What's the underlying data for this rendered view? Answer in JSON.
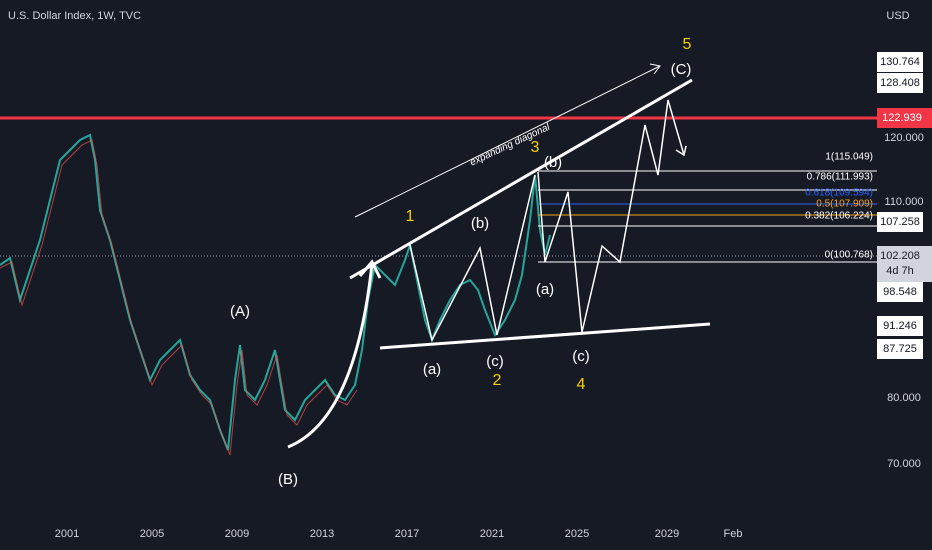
{
  "header": {
    "title": "U.S. Dollar Index, 1W, TVC"
  },
  "price_axis": {
    "currency": "USD",
    "ticks": [
      "120.000",
      "110.000",
      "80.000",
      "70.000"
    ]
  },
  "price_tags": [
    "130.764",
    "128.408",
    "122.939",
    "107.258",
    "102.208",
    "98.548",
    "91.246",
    "87.725"
  ],
  "countdown": "4d 7h",
  "time_axis": {
    "labels": [
      "2001",
      "2005",
      "2009",
      "2013",
      "2017",
      "2021",
      "2025",
      "2029",
      "Feb"
    ]
  },
  "wave_labels": [
    "(A)",
    "(B)",
    "(a)",
    "(c)",
    "2",
    "(a)",
    "(c)",
    "4",
    "1",
    "(b)",
    "3",
    "(b)",
    "5",
    "(C)"
  ],
  "annotation": "expanding diagonal",
  "fib_levels": [
    "1(115.049)",
    "0.786(111.993)",
    "0.618(109.594)",
    "0.5(107.909)",
    "0.382(106.224)",
    "0(100.768)"
  ]
}
